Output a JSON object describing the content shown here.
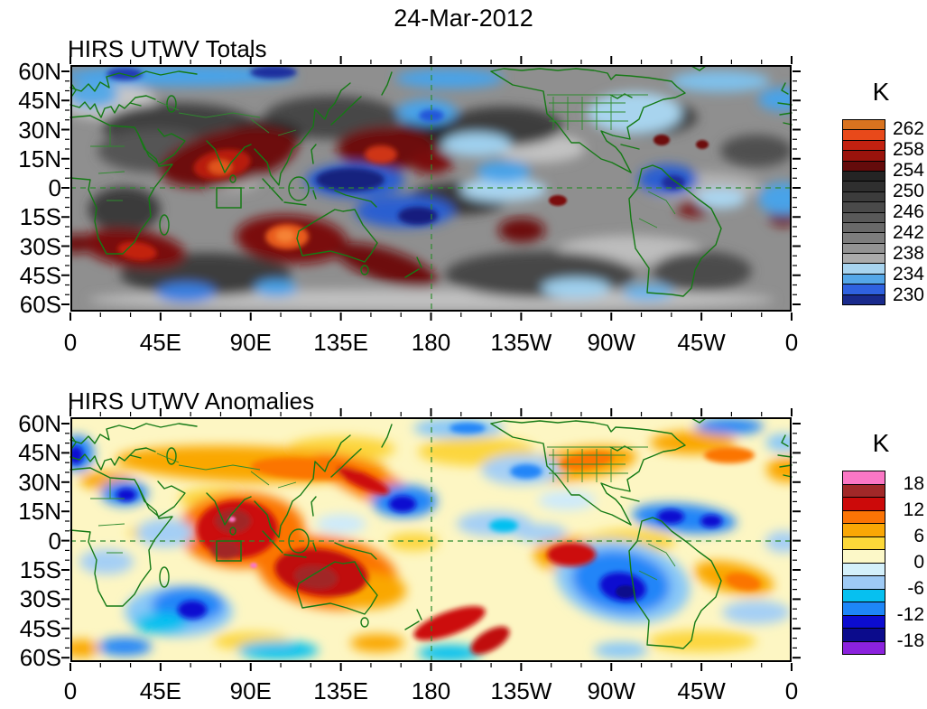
{
  "header": {
    "date_title": "24-Mar-2012"
  },
  "plots": [
    {
      "title": "HIRS UTWV Totals"
    },
    {
      "title": "HIRS UTWV Anomalies"
    }
  ],
  "axes": {
    "lat_labels": [
      "60N",
      "45N",
      "30N",
      "15N",
      "0",
      "15S",
      "30S",
      "45S",
      "60S"
    ],
    "lon_labels": [
      "0",
      "45E",
      "90E",
      "135E",
      "180",
      "135W",
      "90W",
      "45W",
      "0"
    ]
  },
  "colorbars": [
    {
      "unit": "K",
      "tick_labels": [
        "262",
        "258",
        "254",
        "250",
        "246",
        "242",
        "238",
        "234",
        "230"
      ],
      "colors_top_to_bottom": [
        "#d9731f",
        "#e8491a",
        "#c22110",
        "#9a130c",
        "#640b0b",
        "#242424",
        "#2f2f2f",
        "#3c3c3c",
        "#4a4a4a",
        "#595959",
        "#696969",
        "#7d7d7d",
        "#939393",
        "#ababab",
        "#a8d4ef",
        "#55a7e8",
        "#2f62e0",
        "#192a8c"
      ]
    },
    {
      "unit": "K",
      "tick_labels": [
        "18",
        "12",
        "6",
        "0",
        "-6",
        "-12",
        "-18"
      ],
      "colors_top_to_bottom": [
        "#fb77c5",
        "#a12828",
        "#cc0a0a",
        "#fb7405",
        "#faa705",
        "#fcd839",
        "#fcf8c8",
        "#d4f0fb",
        "#9ecaf5",
        "#06c0f0",
        "#1e86f7",
        "#0c0cd0",
        "#0b0b8c",
        "#8b22dd"
      ]
    }
  ],
  "chart_data": [
    {
      "type": "heatmap",
      "subtype": "filled_contour_world_map",
      "title": "HIRS UTWV Totals",
      "date": "24-Mar-2012",
      "units": "K",
      "lon_ticks": [
        "0",
        "45E",
        "90E",
        "135E",
        "180",
        "135W",
        "90W",
        "45W",
        "0"
      ],
      "lat_ticks": [
        "60N",
        "45N",
        "30N",
        "15N",
        "0",
        "15S",
        "30S",
        "45S",
        "60S"
      ],
      "lon_range_deg_east": [
        0,
        360
      ],
      "lat_range_deg": [
        -63,
        63
      ],
      "contour_interval": 2,
      "scale_min": 228,
      "scale_max": 264,
      "colorbar_labels": [
        262,
        258,
        254,
        250,
        246,
        242,
        238,
        234,
        230
      ],
      "palette_top_to_bottom": [
        "#d9731f",
        "#e8491a",
        "#c22110",
        "#9a130c",
        "#640b0b",
        "#242424",
        "#2f2f2f",
        "#3c3c3c",
        "#4a4a4a",
        "#595959",
        "#696969",
        "#7d7d7d",
        "#939393",
        "#ababab",
        "#a8d4ef",
        "#55a7e8",
        "#2f62e0",
        "#192a8c"
      ],
      "legend_position": "right",
      "grid": false,
      "overlays": [
        "green coastlines and country/state borders",
        "dashed green equator line",
        "dashed green 180-degree meridian line",
        "small green outlined box over the equatorial Indian Ocean near 75-85E, 0-10S"
      ],
      "notable_features": [
        "dark red / orange maxima (above 256 K) over India and the Bay of Bengal, the tropical west Pacific near 150E-180, the south Indian Ocean northwest of Australia, southern Africa, and the southwest Pacific east of Australia",
        "deep blue minima (below 234 K) over the equatorial west Pacific / Indonesia, northern South America, the high-latitude band near 60N, and scattered southern-ocean patches",
        "background field of grays (236-254 K) over most subtropical and mid-latitude regions",
        "light blue band over the southeastern United States and west Atlantic"
      ]
    },
    {
      "type": "heatmap",
      "subtype": "filled_contour_world_map",
      "title": "HIRS UTWV Anomalies",
      "date": "24-Mar-2012",
      "units": "K",
      "lon_ticks": [
        "0",
        "45E",
        "90E",
        "135E",
        "180",
        "135W",
        "90W",
        "45W",
        "0"
      ],
      "lat_ticks": [
        "60N",
        "45N",
        "30N",
        "15N",
        "0",
        "15S",
        "30S",
        "45S",
        "60S"
      ],
      "lon_range_deg_east": [
        0,
        360
      ],
      "lat_range_deg": [
        -63,
        63
      ],
      "contour_interval": 3,
      "scale_min": -21,
      "scale_max": 21,
      "colorbar_labels": [
        18,
        12,
        6,
        0,
        -6,
        -12,
        -18
      ],
      "palette_top_to_bottom": [
        "#fb77c5",
        "#a12828",
        "#cc0a0a",
        "#fb7405",
        "#faa705",
        "#fcd839",
        "#fcf8c8",
        "#d4f0fb",
        "#9ecaf5",
        "#06c0f0",
        "#1e86f7",
        "#0c0cd0",
        "#0b0b8c",
        "#8b22dd"
      ],
      "legend_position": "right",
      "grid": false,
      "overlays": [
        "green coastlines and country/state borders",
        "dashed green equator line",
        "dashed green 180-degree meridian line",
        "small green outlined box over the equatorial Indian Ocean near 75-85E, 0-10S"
      ],
      "notable_features": [
        "strong warm anomalies (+9 to +18 K, small pink spots above +18 K) over India / equatorial Indian Ocean and northwest of Australia",
        "warm anomaly bands across mid-latitude Eurasia, along the Kuroshio region near Japan, over Australia, western North America, the north Atlantic, and the south Pacific storm track near New Zealand and 180",
        "cold anomalies (-9 to -18 K) over the southeast Pacific off South America, the tropical Atlantic / Caribbean, seas south of Africa, east of Japan, and along the left map edge near 45N",
        "near-zero pale yellow background with pale blue patches over the central Pacific and southern ocean"
      ]
    }
  ]
}
